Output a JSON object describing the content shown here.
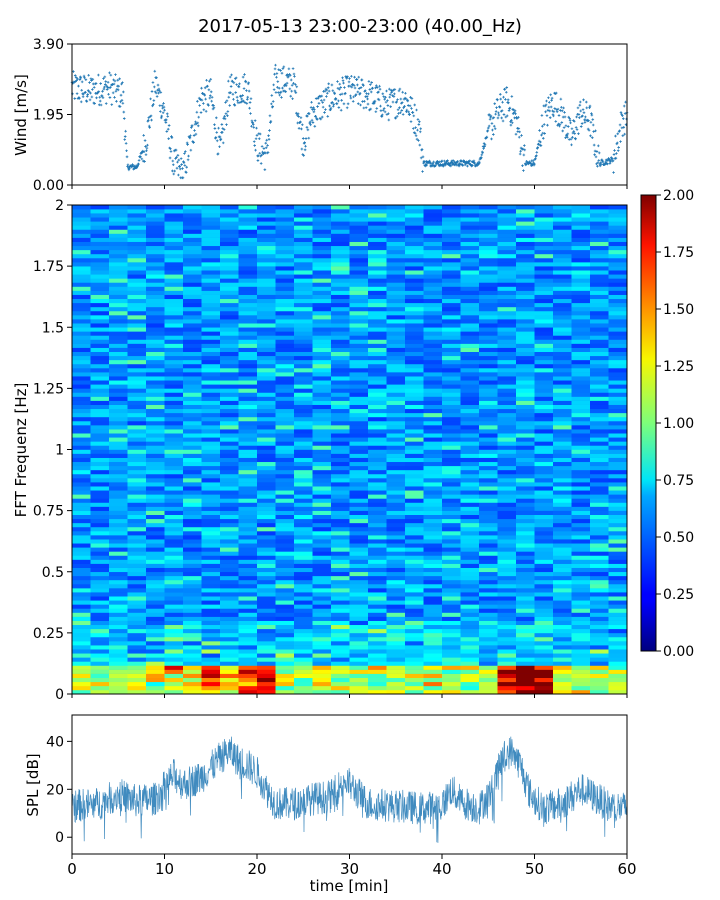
{
  "title": "2017-05-13 23:00-23:00 (40.00_Hz)",
  "chart_data": [
    {
      "type": "scatter",
      "ylabel": "Wind [m/s]",
      "xlim": [
        0,
        60
      ],
      "ylim": [
        0,
        3.9
      ],
      "yticks": [
        "0.00",
        "1.95",
        "3.90"
      ],
      "color": "#1f77b4",
      "marker": "+",
      "wind_profile": [
        [
          0,
          2.7
        ],
        [
          2,
          2.6
        ],
        [
          4,
          2.7
        ],
        [
          5.5,
          2.5
        ],
        [
          6,
          0.5
        ],
        [
          7,
          0.5
        ],
        [
          8,
          1.2
        ],
        [
          9,
          2.8
        ],
        [
          10,
          2.0
        ],
        [
          11,
          0.6
        ],
        [
          12,
          0.3
        ],
        [
          13,
          1.4
        ],
        [
          14,
          2.4
        ],
        [
          15,
          2.5
        ],
        [
          16,
          0.9
        ],
        [
          17,
          2.6
        ],
        [
          19,
          2.7
        ],
        [
          20,
          1.1
        ],
        [
          21,
          0.8
        ],
        [
          22,
          2.9
        ],
        [
          24,
          2.8
        ],
        [
          25,
          1.2
        ],
        [
          26,
          2.0
        ],
        [
          28,
          2.4
        ],
        [
          30,
          2.6
        ],
        [
          32,
          2.5
        ],
        [
          34,
          2.2
        ],
        [
          36,
          2.4
        ],
        [
          37.5,
          1.6
        ],
        [
          38,
          0.6
        ],
        [
          40,
          0.6
        ],
        [
          42,
          0.6
        ],
        [
          44,
          0.6
        ],
        [
          45,
          1.5
        ],
        [
          46,
          2.0
        ],
        [
          47,
          2.3
        ],
        [
          48,
          1.8
        ],
        [
          49,
          0.6
        ],
        [
          50,
          0.6
        ],
        [
          51,
          1.8
        ],
        [
          52,
          2.3
        ],
        [
          53,
          1.9
        ],
        [
          54,
          1.3
        ],
        [
          55,
          2.0
        ],
        [
          56,
          1.8
        ],
        [
          57,
          0.6
        ],
        [
          58.5,
          0.7
        ],
        [
          59.5,
          1.8
        ],
        [
          60,
          1.9
        ]
      ]
    },
    {
      "type": "heatmap",
      "ylabel": "FFT Frequenz [Hz]",
      "xlim": [
        0,
        60
      ],
      "ylim": [
        0,
        2
      ],
      "yticks": [
        "0",
        "0.25",
        "0.5",
        "0.75",
        "1",
        "1.25",
        "1.5",
        "1.75",
        "2"
      ],
      "colormap": "jet",
      "colorbar": {
        "vmin": 0,
        "vmax": 2,
        "ticks": [
          "0.00",
          "0.25",
          "0.50",
          "0.75",
          "1.00",
          "1.25",
          "1.50",
          "1.75",
          "2.00"
        ]
      }
    },
    {
      "type": "line",
      "ylabel": "SPL [dB]",
      "xlabel": "time [min]",
      "xlim": [
        0,
        60
      ],
      "ylim": [
        -7,
        51
      ],
      "yticks": [
        "0",
        "20",
        "40"
      ],
      "xticks": [
        "0",
        "10",
        "20",
        "30",
        "40",
        "50",
        "60"
      ],
      "color": "#1f77b4",
      "spl_profile": [
        [
          0,
          13
        ],
        [
          3,
          14
        ],
        [
          5,
          18
        ],
        [
          7,
          15
        ],
        [
          9,
          16
        ],
        [
          11,
          26
        ],
        [
          12,
          22
        ],
        [
          14,
          25
        ],
        [
          16,
          33
        ],
        [
          17,
          36
        ],
        [
          18,
          32
        ],
        [
          19,
          30
        ],
        [
          20,
          27
        ],
        [
          21,
          20
        ],
        [
          22,
          14
        ],
        [
          24,
          14
        ],
        [
          26,
          16
        ],
        [
          28,
          17
        ],
        [
          29.5,
          24
        ],
        [
          30.5,
          20
        ],
        [
          32,
          14
        ],
        [
          35,
          13
        ],
        [
          38,
          12
        ],
        [
          40,
          13
        ],
        [
          41,
          20
        ],
        [
          42,
          15
        ],
        [
          44,
          12
        ],
        [
          45.5,
          20
        ],
        [
          46.5,
          33
        ],
        [
          47.5,
          36
        ],
        [
          48.5,
          30
        ],
        [
          49.5,
          18
        ],
        [
          51,
          12
        ],
        [
          53,
          14
        ],
        [
          55,
          20
        ],
        [
          56,
          18
        ],
        [
          58,
          13
        ],
        [
          60,
          12
        ]
      ]
    }
  ]
}
